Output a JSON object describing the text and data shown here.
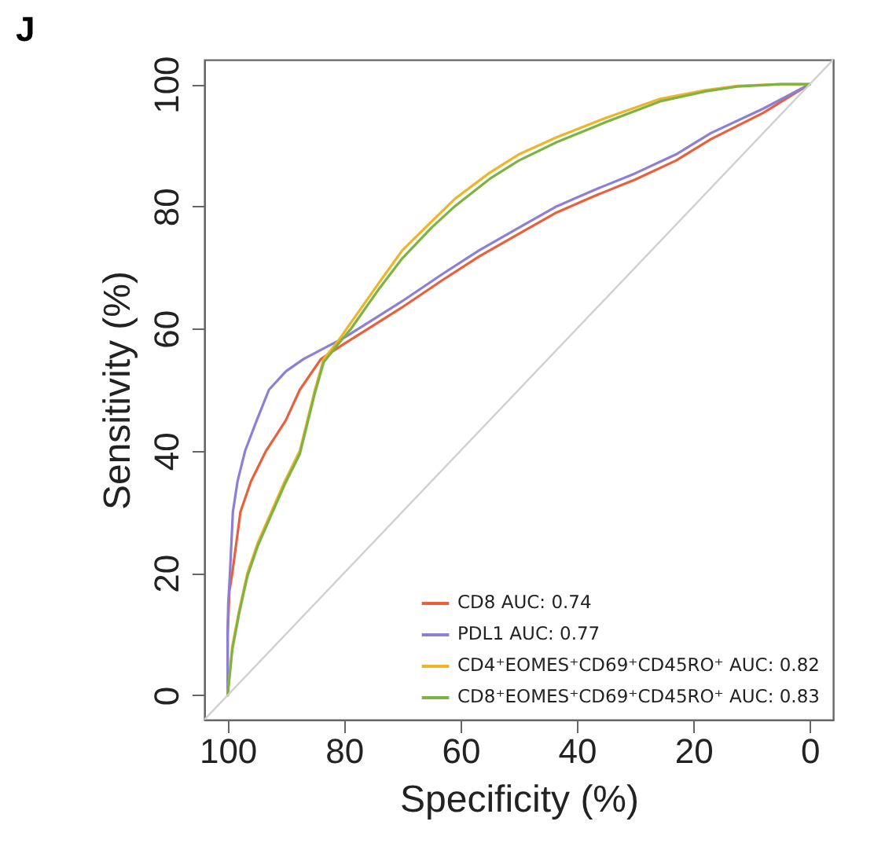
{
  "chart_data": {
    "type": "line",
    "title": "J",
    "xlabel": "Specificity (%)",
    "ylabel": "Sensitivity (%)",
    "xlim": [
      104,
      -4
    ],
    "ylim": [
      -4,
      104
    ],
    "xticks": [
      100,
      80,
      60,
      40,
      20,
      0
    ],
    "yticks": [
      0,
      20,
      40,
      60,
      80,
      100
    ],
    "grid": false,
    "legend": "bottom right",
    "line_style": "solid",
    "series": [
      {
        "name": "CD8 AUC: 0.74",
        "color": "#e8603c",
        "x": [
          100,
          100,
          99.7,
          99.2,
          98.5,
          97.8,
          96,
          93.4,
          90,
          87.6,
          84,
          80,
          75,
          70,
          63,
          56.8,
          50,
          43.5,
          37,
          30,
          23,
          17,
          8,
          0
        ],
        "values": [
          0,
          10,
          17,
          20,
          25,
          30,
          35,
          40,
          45,
          50,
          55,
          57.5,
          60.5,
          63.5,
          68,
          71.8,
          75.5,
          79,
          81.7,
          84.4,
          87.5,
          91,
          95.3,
          100
        ]
      },
      {
        "name": "PDL1 AUC: 0.77",
        "color": "#8b7fd6",
        "x": [
          100,
          100,
          99.9,
          99.6,
          99.1,
          98.3,
          97,
          95,
          92.9,
          90,
          87,
          84,
          80,
          75,
          70,
          63,
          56.8,
          50,
          43.5,
          37,
          30,
          23,
          17,
          8,
          0
        ],
        "values": [
          0,
          10,
          15,
          20,
          30,
          35,
          40,
          45,
          50,
          53,
          55,
          56.5,
          58.5,
          61.5,
          64.5,
          69,
          72.8,
          76.5,
          80,
          82.7,
          85.4,
          88.5,
          92,
          96,
          100
        ]
      },
      {
        "name": "CD4⁺EOMES⁺CD69⁺CD45RO⁺ AUC: 0.82",
        "color": "#f0b429",
        "x": [
          100,
          99.2,
          98,
          96.6,
          94.8,
          92.5,
          90.2,
          87.6,
          86.3,
          85,
          83.5,
          81,
          78.8,
          74,
          70,
          65,
          61,
          55,
          50,
          43.5,
          35,
          25.7,
          18,
          12.5,
          5,
          0
        ],
        "values": [
          0,
          8,
          14,
          20,
          25,
          30,
          35,
          40,
          45,
          50,
          55,
          58,
          61,
          67.5,
          72.8,
          77.5,
          81.2,
          85.5,
          88.5,
          91.3,
          94.5,
          97.6,
          99,
          99.7,
          100,
          100
        ]
      },
      {
        "name": "CD8⁺EOMES⁺CD69⁺CD45RO⁺ AUC: 0.83",
        "color": "#7cb342",
        "x": [
          100,
          99.2,
          98,
          96.6,
          94.8,
          92.5,
          90.2,
          87.6,
          86.3,
          85,
          83.5,
          81,
          78.8,
          74,
          70,
          65,
          61,
          55,
          50,
          43.5,
          35,
          25.7,
          18,
          12.5,
          5,
          0
        ],
        "values": [
          0,
          7.5,
          13.5,
          19.5,
          24.5,
          29.5,
          34.5,
          39.5,
          44.5,
          49.5,
          54.5,
          57.5,
          60,
          66.5,
          71.5,
          76.5,
          80,
          84.5,
          87.5,
          90.5,
          93.8,
          97.2,
          98.8,
          99.6,
          100,
          100
        ]
      },
      {
        "color": "#d0d0d0",
        "x": [
          104,
          -4
        ],
        "values": [
          -4,
          104
        ]
      }
    ]
  }
}
